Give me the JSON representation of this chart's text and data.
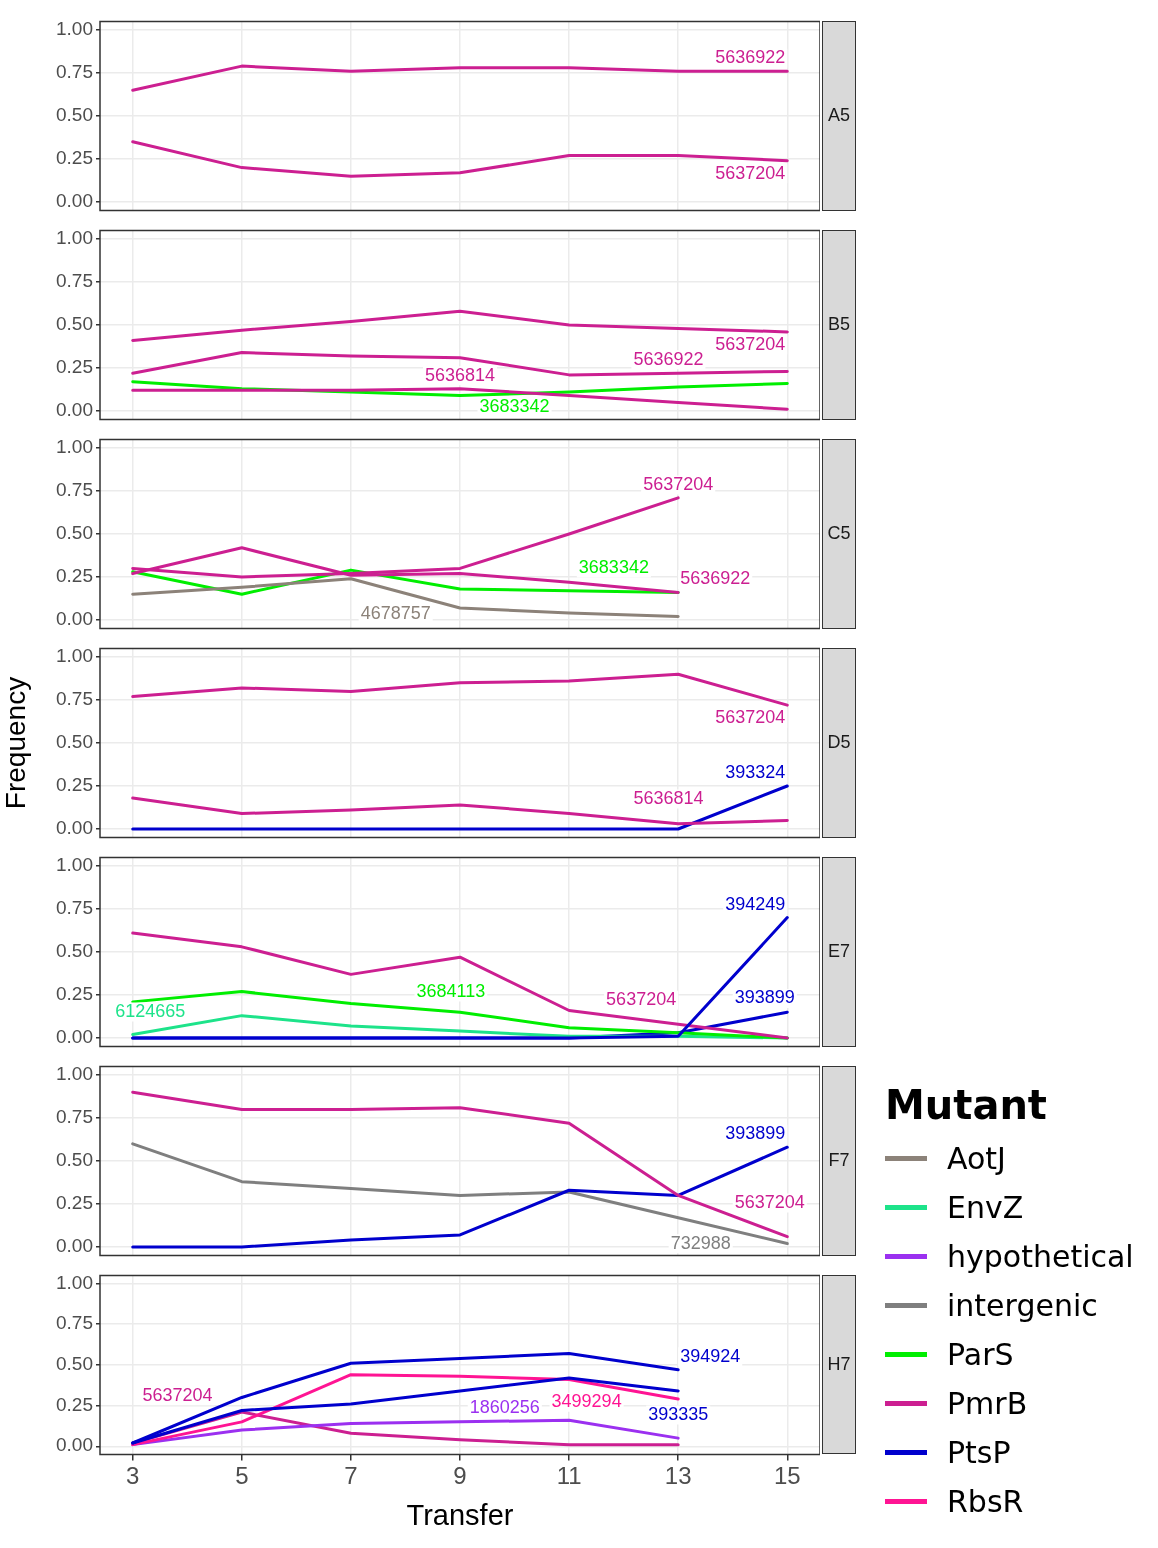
{
  "chart_data": [
    {
      "type": "line",
      "title": "A5",
      "x": [
        3,
        5,
        7,
        9,
        11,
        13,
        15
      ],
      "xlim": [
        2.4,
        15.6
      ],
      "xticks": [
        3,
        5,
        7,
        9,
        11,
        13,
        15
      ],
      "ylim": [
        -0.05,
        1.05
      ],
      "yticks": [
        {
          "value": 0,
          "label": "0.00"
        },
        {
          "value": 0.25,
          "label": "0.25"
        },
        {
          "value": 0.5,
          "label": "0.50"
        },
        {
          "value": 0.75,
          "label": "0.75"
        },
        {
          "value": 1,
          "label": "1.00"
        }
      ],
      "grid": true,
      "tick_labels": "y",
      "series": [
        {
          "name": "PmrB",
          "color": "#cc1f91",
          "values": [
            0.65,
            0.79,
            0.76,
            0.78,
            0.78,
            0.76,
            0.76
          ]
        },
        {
          "color": "#cc1f91",
          "values": [
            0.35,
            0.2,
            0.15,
            0.17,
            0.27,
            0.27,
            0.24
          ]
        }
      ],
      "annotations": [
        "5636922",
        "5637204"
      ]
    },
    {
      "type": "line",
      "title": "B5",
      "x": [
        3,
        5,
        7,
        9,
        11,
        13,
        15
      ],
      "xlim": [
        2.4,
        15.6
      ],
      "xticks": [
        3,
        5,
        7,
        9,
        11,
        13,
        15
      ],
      "ylim": [
        -0.05,
        1.05
      ],
      "yticks": [
        {
          "value": 0,
          "label": "0.00"
        },
        {
          "value": 0.25,
          "label": "0.25"
        },
        {
          "value": 0.5,
          "label": "0.50"
        },
        {
          "value": 0.75,
          "label": "0.75"
        },
        {
          "value": 1,
          "label": "1.00"
        }
      ],
      "grid": true,
      "tick_labels": "y",
      "series": [
        {
          "name": "PmrB",
          "color": "#cc1f91",
          "values": [
            0.41,
            0.47,
            0.52,
            0.58,
            0.5,
            0.48,
            0.46
          ]
        },
        {
          "color": "#cc1f91",
          "values": [
            0.22,
            0.34,
            0.32,
            0.31,
            0.21,
            0.22,
            0.23
          ]
        },
        {
          "color": "#cc1f91",
          "values": [
            0.12,
            0.12,
            0.12,
            0.13,
            0.09,
            0.05,
            0.01
          ]
        },
        {
          "name": "ParS",
          "color": "#00ee00",
          "values": [
            0.17,
            0.13,
            0.11,
            0.09,
            0.11,
            0.14,
            0.16
          ]
        }
      ],
      "annotations": [
        "5637204",
        "5636922",
        "5636814",
        "3683342"
      ]
    },
    {
      "type": "line",
      "title": "C5",
      "x": [
        3,
        5,
        7,
        9,
        11,
        13
      ],
      "xlim": [
        2.4,
        15.6
      ],
      "xticks": [
        3,
        5,
        7,
        9,
        11,
        13,
        15
      ],
      "ylim": [
        -0.05,
        1.05
      ],
      "yticks": [
        {
          "value": 0,
          "label": "0.00"
        },
        {
          "value": 0.25,
          "label": "0.25"
        },
        {
          "value": 0.5,
          "label": "0.50"
        },
        {
          "value": 0.75,
          "label": "0.75"
        },
        {
          "value": 1,
          "label": "1.00"
        }
      ],
      "grid": true,
      "tick_labels": "y",
      "series": [
        {
          "name": "PmrB",
          "color": "#cc1f91",
          "values": [
            0.3,
            0.25,
            0.27,
            0.3,
            0.5,
            0.71
          ]
        },
        {
          "color": "#cc1f91",
          "values": [
            0.27,
            0.42,
            0.26,
            0.27,
            0.22,
            0.16
          ]
        },
        {
          "name": "AotJ",
          "color": "#8c8279",
          "values": [
            0.15,
            0.19,
            0.24,
            0.07,
            0.04,
            0.02
          ]
        },
        {
          "name": "ParS",
          "color": "#00ee00",
          "values": [
            0.28,
            0.15,
            0.29,
            0.18,
            0.17,
            0.16
          ]
        }
      ],
      "annotations": [
        "5637204",
        "5636922",
        "4678757",
        "3683342"
      ]
    },
    {
      "type": "line",
      "title": "D5",
      "ylabel": "Frequency",
      "x": [
        3,
        5,
        7,
        9,
        11,
        13,
        15
      ],
      "xlim": [
        2.4,
        15.6
      ],
      "xticks": [
        3,
        5,
        7,
        9,
        11,
        13,
        15
      ],
      "ylim": [
        -0.05,
        1.05
      ],
      "yticks": [
        {
          "value": 0,
          "label": "0.00"
        },
        {
          "value": 0.25,
          "label": "0.25"
        },
        {
          "value": 0.5,
          "label": "0.50"
        },
        {
          "value": 0.75,
          "label": "0.75"
        },
        {
          "value": 1,
          "label": "1.00"
        }
      ],
      "grid": true,
      "tick_labels": "y",
      "series": [
        {
          "name": "PmrB",
          "color": "#cc1f91",
          "values": [
            0.77,
            0.82,
            0.8,
            0.85,
            0.86,
            0.9,
            0.72
          ]
        },
        {
          "color": "#cc1f91",
          "values": [
            0.18,
            0.09,
            0.11,
            0.14,
            0.09,
            0.03,
            0.05
          ]
        },
        {
          "name": "PtsP",
          "color": "#0000cd",
          "values": [
            0,
            0,
            0,
            0,
            0,
            0,
            0.25
          ]
        }
      ],
      "annotations": [
        "5637204",
        "5636814",
        "393324"
      ]
    },
    {
      "type": "line",
      "title": "E7",
      "x": [
        3,
        5,
        7,
        9,
        11,
        13,
        15
      ],
      "xlim": [
        2.4,
        15.6
      ],
      "xticks": [
        3,
        5,
        7,
        9,
        11,
        13,
        15
      ],
      "ylim": [
        -0.05,
        1.05
      ],
      "yticks": [
        {
          "value": 0,
          "label": "0.00"
        },
        {
          "value": 0.25,
          "label": "0.25"
        },
        {
          "value": 0.5,
          "label": "0.50"
        },
        {
          "value": 0.75,
          "label": "0.75"
        },
        {
          "value": 1,
          "label": "1.00"
        }
      ],
      "grid": true,
      "tick_labels": "y",
      "series": [
        {
          "name": "PtsP",
          "color": "#0000cd",
          "values": [
            0,
            0,
            0,
            0,
            0,
            0.01,
            0.7
          ]
        },
        {
          "name": "PmrB",
          "color": "#cc1f91",
          "values": [
            0.61,
            0.53,
            0.37,
            0.47,
            0.16,
            0.08,
            0
          ]
        },
        {
          "name": "ParS",
          "color": "#00ee00",
          "values": [
            0.21,
            0.27,
            0.2,
            0.15,
            0.06,
            0.03,
            0
          ]
        },
        {
          "name": "EnvZ",
          "color": "#1de38a",
          "values": [
            0.02,
            0.13,
            0.07,
            0.04,
            0.01,
            0.01,
            0
          ]
        },
        {
          "color": "#0000cd",
          "values": [
            0,
            0,
            0,
            0,
            0,
            0.03,
            0.15
          ]
        }
      ],
      "annotations": [
        "394249",
        "5637204",
        "3684113",
        "6124665",
        "393899"
      ]
    },
    {
      "type": "line",
      "title": "F7",
      "x": [
        3,
        5,
        7,
        9,
        11,
        13,
        15
      ],
      "xlim": [
        2.4,
        15.6
      ],
      "xticks": [
        3,
        5,
        7,
        9,
        11,
        13,
        15
      ],
      "ylim": [
        -0.05,
        1.05
      ],
      "yticks": [
        {
          "value": 0,
          "label": "0.00"
        },
        {
          "value": 0.25,
          "label": "0.25"
        },
        {
          "value": 0.5,
          "label": "0.50"
        },
        {
          "value": 0.75,
          "label": "0.75"
        },
        {
          "value": 1,
          "label": "1.00"
        }
      ],
      "grid": true,
      "tick_labels": "y",
      "series": [
        {
          "name": "PmrB",
          "color": "#cc1f91",
          "values": [
            0.9,
            0.8,
            0.8,
            0.81,
            0.72,
            0.3,
            0.06
          ]
        },
        {
          "name": "PtsP",
          "color": "#0000cd",
          "values": [
            0,
            0,
            0.04,
            0.07,
            0.33,
            0.3,
            0.58
          ]
        },
        {
          "name": "intergenic",
          "color": "#7f7f7f",
          "values": [
            0.6,
            0.38,
            0.34,
            0.3,
            0.32,
            0.17,
            0.02
          ]
        }
      ],
      "annotations": [
        "5637204",
        "393899",
        "732988"
      ]
    },
    {
      "type": "line",
      "title": "H7",
      "xlabel": "Transfer",
      "legend": "right",
      "legend_title": "Mutant",
      "x": [
        3,
        5,
        7,
        9,
        11,
        13
      ],
      "xlim": [
        2.4,
        15.6
      ],
      "xticks": [
        3,
        5,
        7,
        9,
        11,
        13,
        15
      ],
      "ylim": [
        -0.05,
        1.05
      ],
      "yticks": [
        {
          "value": 0,
          "label": "0.00"
        },
        {
          "value": 0.25,
          "label": "0.25"
        },
        {
          "value": 0.5,
          "label": "0.50"
        },
        {
          "value": 0.75,
          "label": "0.75"
        },
        {
          "value": 1,
          "label": "1.00"
        }
      ],
      "grid": true,
      "series": [
        {
          "name": "PtsP",
          "color": "#0000cd",
          "values": [
            0.02,
            0.3,
            0.51,
            0.54,
            0.57,
            0.47
          ]
        },
        {
          "color": "#0000cd",
          "values": [
            0.02,
            0.22,
            0.26,
            0.34,
            0.42,
            0.34
          ]
        },
        {
          "name": "RbsR",
          "color": "#ff1493",
          "values": [
            0.01,
            0.15,
            0.44,
            0.43,
            0.41,
            0.29
          ]
        },
        {
          "name": "hypothetical",
          "color": "#9b30f0",
          "values": [
            0.01,
            0.1,
            0.14,
            0.15,
            0.16,
            0.05
          ]
        },
        {
          "name": "PmrB",
          "color": "#cc1f91",
          "values": [
            0.02,
            0.21,
            0.08,
            0.04,
            0.01,
            0.01
          ]
        }
      ],
      "annotations": [
        "394924",
        "393335",
        "3499294",
        "1860256",
        "5637204"
      ]
    }
  ]
}
